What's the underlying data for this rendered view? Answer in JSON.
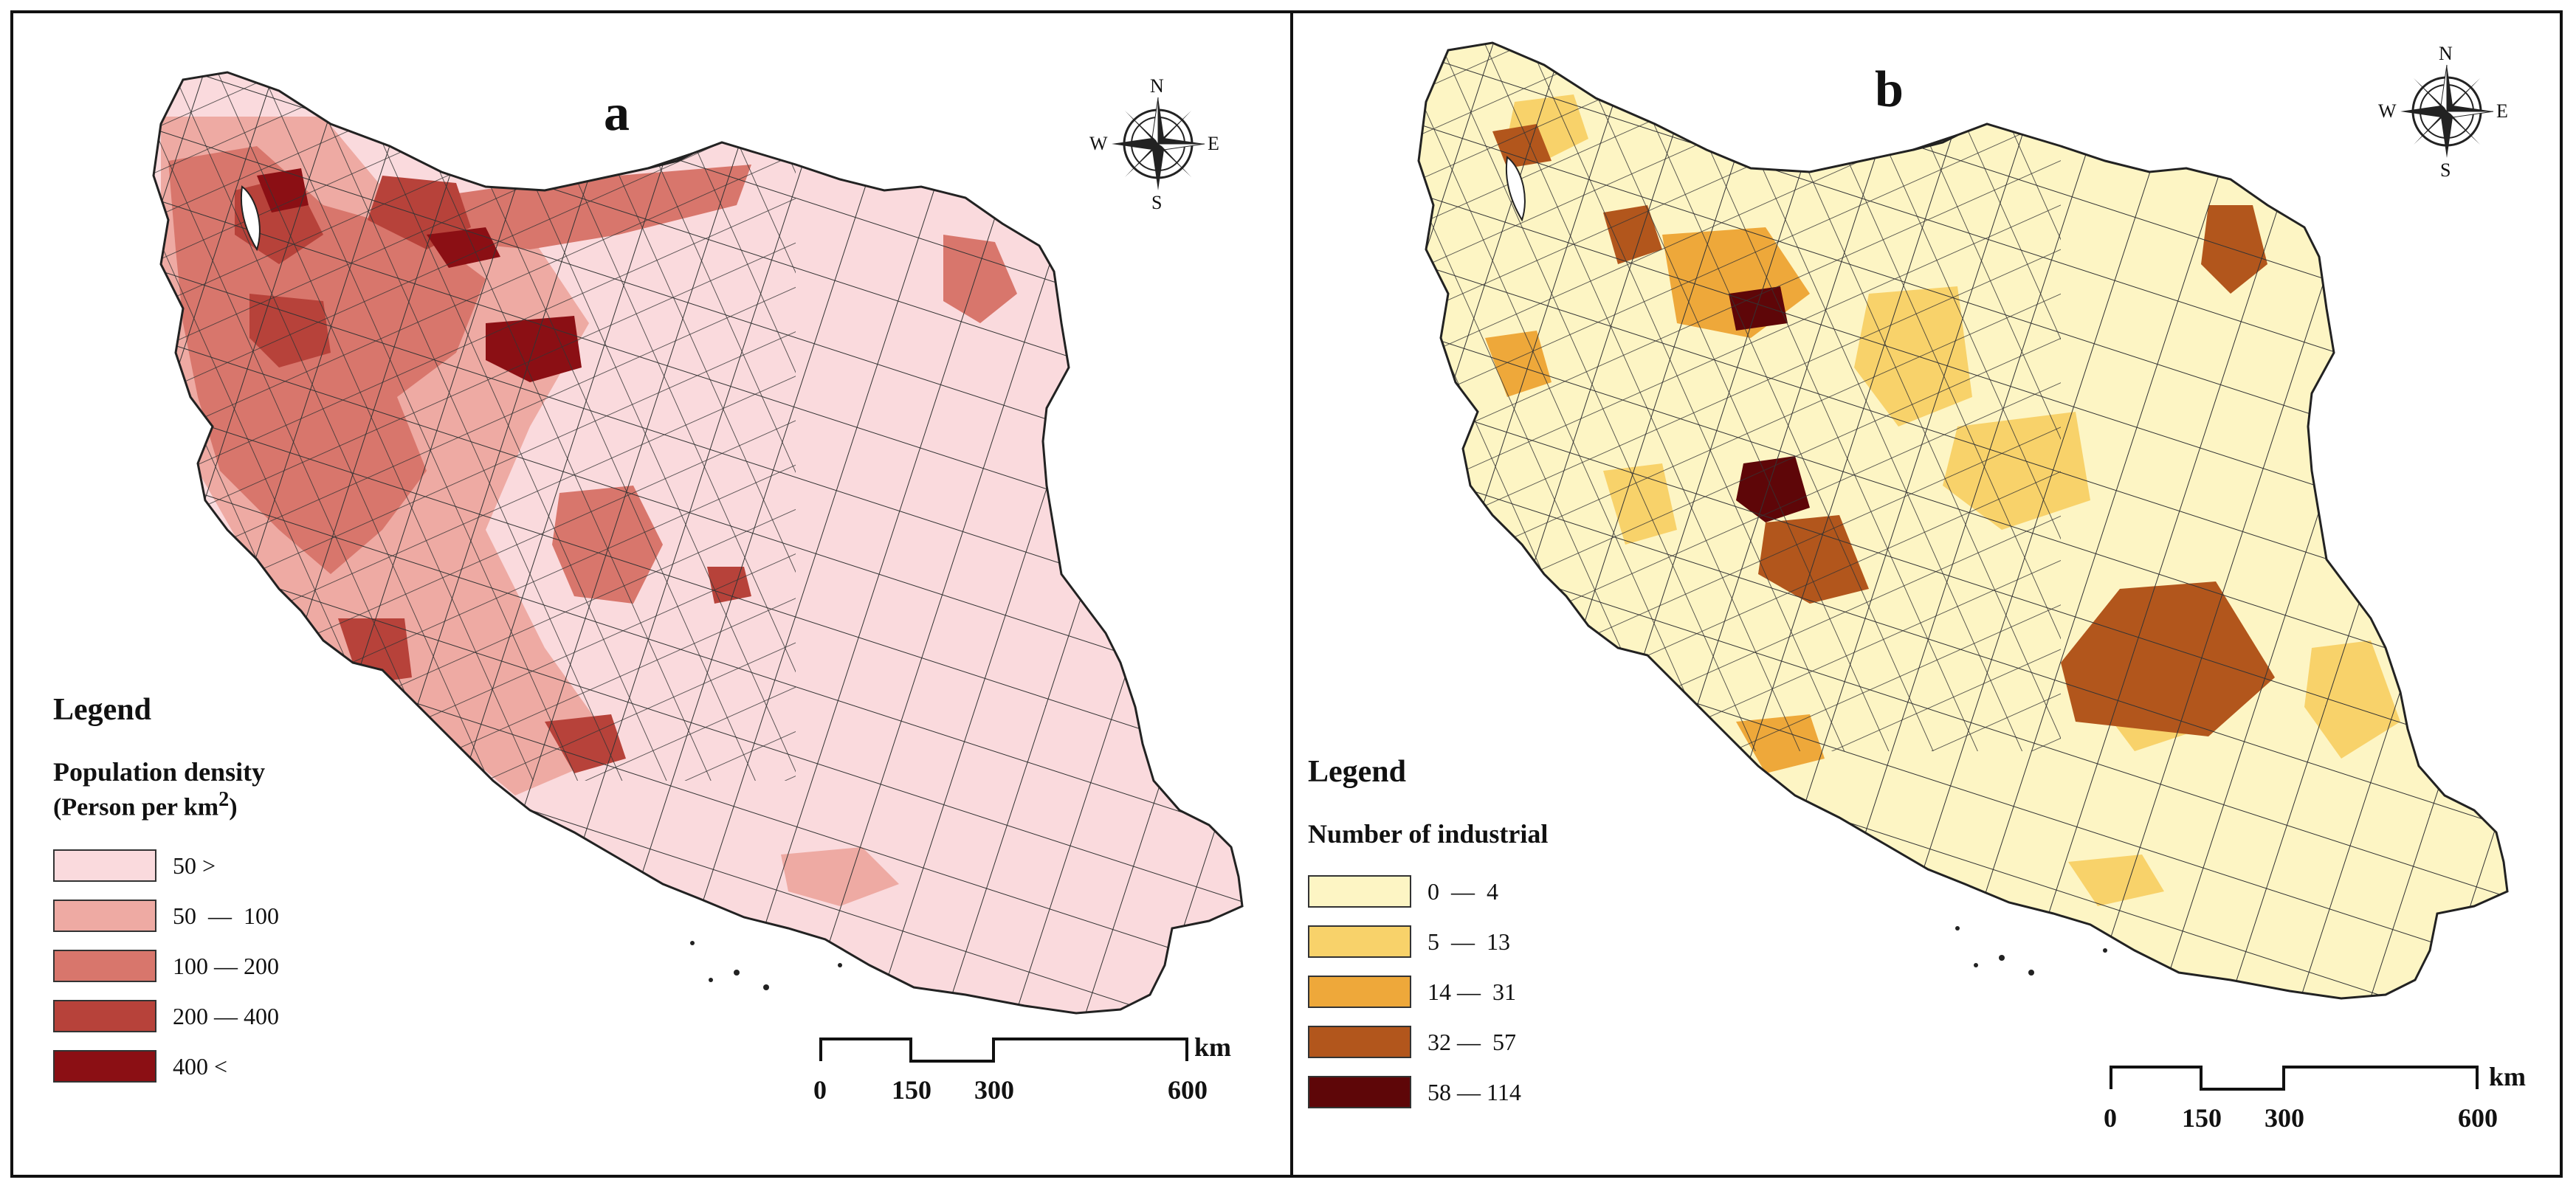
{
  "panels": [
    {
      "label": "a",
      "compass": {
        "n": "N",
        "s": "S",
        "e": "E",
        "w": "W"
      },
      "legend": {
        "title": "Legend",
        "subtitle": "Population density",
        "unit_prefix": "(Person per km",
        "unit_sup": "2",
        "unit_suffix": ")",
        "items": [
          {
            "label": "50 >",
            "color": "#fadadd"
          },
          {
            "label": "50  —  100",
            "color": "#eeaaa3"
          },
          {
            "label": "100 — 200",
            "color": "#d8766c"
          },
          {
            "label": "200 — 400",
            "color": "#b7423a"
          },
          {
            "label": "400 <",
            "color": "#8b0f14"
          }
        ]
      },
      "scale": {
        "ticks": [
          "0",
          "150",
          "300",
          "600"
        ],
        "unit": "km"
      }
    },
    {
      "label": "b",
      "compass": {
        "n": "N",
        "s": "S",
        "e": "E",
        "w": "W"
      },
      "legend": {
        "title": "Legend",
        "subtitle": "Number of industrial",
        "items": [
          {
            "label": "0  —  4",
            "color": "#fdf5c4"
          },
          {
            "label": "5  —  13",
            "color": "#f8d26a"
          },
          {
            "label": "14 —  31",
            "color": "#eea83a"
          },
          {
            "label": "32 —  57",
            "color": "#b2561c"
          },
          {
            "label": "58 — 114",
            "color": "#5e0608"
          }
        ]
      },
      "scale": {
        "ticks": [
          "0",
          "150",
          "300",
          "600"
        ],
        "unit": "km"
      }
    }
  ]
}
